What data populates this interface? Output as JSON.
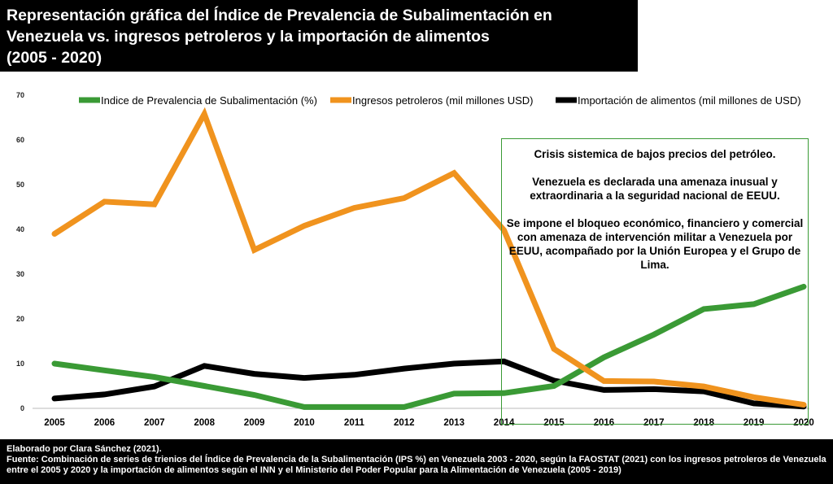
{
  "title": {
    "line1": "Representación gráfica del Índice de Prevalencia de Subalimentación en",
    "line2": "Venezuela vs. ingresos petroleros y la importación de alimentos",
    "line3": "(2005 - 2020)"
  },
  "annotation": {
    "line1": "Crisis sistemica de bajos precios del petróleo.",
    "line2": "Venezuela es declarada una amenaza inusual y extraordinaria a la seguridad nacional de EEUU.",
    "line3": "Se impone el bloqueo económico, financiero y comercial con amenaza de intervención militar a Venezuela por EEUU, acompañado por la Unión Europea y el Grupo de Lima."
  },
  "footer": {
    "line1": "Elaborado por Clara Sánchez (2021).",
    "line2": "Fuente: Combinación de series de trienios del Índice de Prevalencia de la Subalimentación (IPS %) en Venezuela 2003 - 2020, según la FAOSTAT (2021) con los ingresos petroleros de Venezuela entre el 2005 y 2020 y la importación de alimentos según el INN y el Ministerio del Poder Popular para la Alimentación de Venezuela (2005 - 2019)"
  },
  "chart_data": {
    "type": "line",
    "x": [
      "2005",
      "2006",
      "2007",
      "2008",
      "2009",
      "2010",
      "2011",
      "2012",
      "2013",
      "2014",
      "2015",
      "2016",
      "2017",
      "2018",
      "2019",
      "2020"
    ],
    "yticks": [
      0,
      10,
      20,
      30,
      40,
      50,
      60,
      70
    ],
    "ylim": [
      0,
      70
    ],
    "grid": false,
    "legend_position": "top",
    "series": [
      {
        "name": "Indice de Prevalencia de Subalimentación (%)",
        "color": "#3a9a35",
        "values": [
          10,
          8.5,
          7,
          5,
          3,
          0.3,
          0.3,
          0.3,
          3.3,
          3.4,
          5,
          11.4,
          16.5,
          22.2,
          23.3,
          27.2
        ]
      },
      {
        "name": "Ingresos petroleros (mil millones USD)",
        "color": "#f0931e",
        "values": [
          39,
          46.2,
          45.6,
          65.8,
          35.4,
          40.8,
          44.8,
          47,
          52.6,
          39.8,
          13.3,
          6.1,
          6,
          4.9,
          2.5,
          0.8
        ]
      },
      {
        "name": "Importación de alimentos (mil millones de USD)",
        "color": "#000000",
        "values": [
          2.2,
          3.1,
          4.9,
          9.5,
          7.7,
          6.8,
          7.5,
          8.9,
          10,
          10.5,
          6.2,
          4.1,
          4.3,
          3.8,
          1.1,
          0.4
        ]
      }
    ]
  }
}
